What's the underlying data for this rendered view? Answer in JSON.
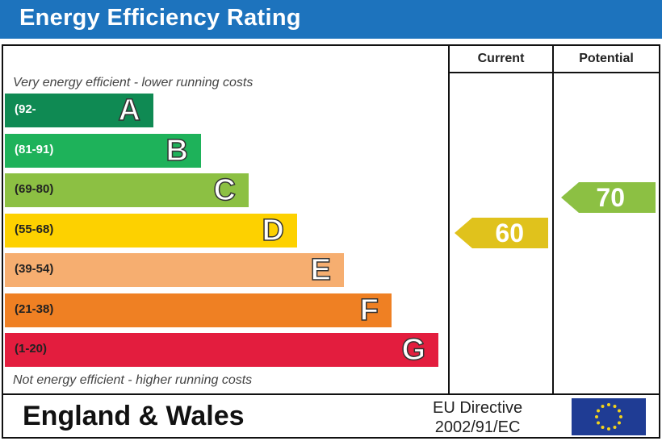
{
  "header": {
    "title": "Energy Efficiency Rating"
  },
  "columns": {
    "current": "Current",
    "potential": "Potential"
  },
  "scale": {
    "top_note": "Very energy efficient - lower running costs",
    "bottom_note": "Not energy efficient - higher running costs"
  },
  "chart_data": {
    "type": "bar",
    "categories": [
      "A",
      "B",
      "C",
      "D",
      "E",
      "F",
      "G"
    ],
    "ranges": [
      "(92-",
      "(81-91)",
      "(69-80)",
      "(55-68)",
      "(39-54)",
      "(21-38)",
      "(1-20)"
    ],
    "colors": [
      "#0f8a53",
      "#1eb25a",
      "#8cc043",
      "#fdd100",
      "#f6ae70",
      "#ef8023",
      "#e31d3e"
    ],
    "current": {
      "value": 60,
      "band": "D",
      "color": "#e0c21c"
    },
    "potential": {
      "value": 70,
      "band": "C",
      "color": "#8cc043"
    }
  },
  "footer": {
    "region": "England & Wales",
    "directive_line1": "EU Directive",
    "directive_line2": "2002/91/EC",
    "flag_icon": "eu-flag-icon"
  }
}
